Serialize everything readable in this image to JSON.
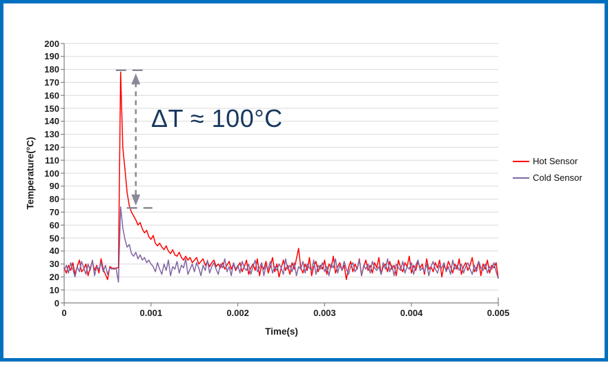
{
  "frame": {
    "border_color": "#0070C0",
    "background": "#FFFFFF"
  },
  "legend": {
    "items": [
      {
        "label": "Hot Sensor",
        "color": "#FF0000"
      },
      {
        "label": "Cold Sensor",
        "color": "#8064A2"
      }
    ]
  },
  "chart_data": {
    "type": "line",
    "title": "",
    "xlabel": "Time(s)",
    "ylabel": "Temperature(°C)",
    "xlim": [
      0,
      0.005
    ],
    "ylim": [
      0,
      200
    ],
    "x_ticks": [
      "0",
      "0.001",
      "0.002",
      "0.003",
      "0.004",
      "0.005"
    ],
    "x_tick_values": [
      0,
      0.001,
      0.002,
      0.003,
      0.004,
      0.005
    ],
    "y_ticks": [
      0,
      10,
      20,
      30,
      40,
      50,
      60,
      70,
      80,
      90,
      100,
      110,
      120,
      130,
      140,
      150,
      160,
      170,
      180,
      190,
      200
    ],
    "grid": "horizontal",
    "gridline_color": "#D9D9D9",
    "axis_color": "#808080",
    "legend_position": "right",
    "x_start": 0,
    "x_step": 2.5e-05,
    "series": [
      {
        "name": "Hot Sensor",
        "color": "#FF0000",
        "values": [
          27,
          23,
          29,
          25,
          31,
          22,
          28,
          33,
          24,
          26,
          30,
          21,
          27,
          32,
          25,
          29,
          23,
          34,
          26,
          22,
          18,
          28,
          27,
          26,
          27,
          27,
          178,
          120,
          103,
          85,
          75,
          70,
          67,
          64,
          60,
          62,
          57,
          54,
          56,
          51,
          49,
          52,
          46,
          44,
          46,
          43,
          41,
          44,
          40,
          38,
          41,
          37,
          36,
          39,
          35,
          33,
          36,
          33,
          35,
          31,
          33,
          35,
          30,
          32,
          34,
          29,
          32,
          28,
          31,
          33,
          28,
          30,
          27,
          31,
          26,
          29,
          32,
          26,
          30,
          25,
          28,
          31,
          24,
          28,
          33,
          22,
          27,
          30,
          25,
          34,
          21,
          29,
          26,
          32,
          23,
          28,
          35,
          24,
          30,
          20,
          27,
          33,
          25,
          29,
          22,
          31,
          26,
          34,
          42,
          27,
          23,
          30,
          25,
          35,
          21,
          28,
          32,
          24,
          29,
          26,
          33,
          22,
          30,
          27,
          36,
          23,
          28,
          31,
          25,
          29,
          18,
          27,
          32,
          24,
          30,
          26,
          34,
          21,
          28,
          33,
          25,
          29,
          23,
          31,
          27,
          35,
          22,
          28,
          30,
          24,
          32,
          26,
          29,
          21,
          33,
          27,
          24,
          31,
          28,
          36,
          23,
          29,
          25,
          32,
          27,
          30,
          22,
          34,
          26,
          28,
          24,
          31,
          27,
          33,
          20,
          29,
          25,
          32,
          28,
          23,
          30,
          26,
          34,
          22,
          28,
          31,
          25,
          29,
          35,
          24,
          27,
          32,
          21,
          30,
          26,
          33,
          23,
          29,
          27,
          31,
          19
        ]
      },
      {
        "name": "Cold Sensor",
        "color": "#8064A2",
        "values": [
          25,
          29,
          23,
          31,
          26,
          20,
          28,
          24,
          32,
          27,
          22,
          30,
          25,
          33,
          21,
          28,
          26,
          31,
          24,
          29,
          22,
          27,
          26,
          27,
          26,
          16,
          74,
          58,
          49,
          43,
          45,
          38,
          36,
          39,
          34,
          37,
          33,
          35,
          31,
          33,
          30,
          28,
          24,
          31,
          26,
          22,
          30,
          25,
          33,
          21,
          28,
          26,
          32,
          23,
          29,
          27,
          34,
          22,
          26,
          30,
          24,
          31,
          27,
          21,
          29,
          25,
          33,
          23,
          28,
          31,
          26,
          22,
          30,
          27,
          34,
          24,
          28,
          21,
          31,
          26,
          29,
          23,
          32,
          27,
          25,
          30,
          22,
          28,
          33,
          24,
          27,
          31,
          21,
          29,
          26,
          32,
          23,
          28,
          25,
          30,
          27,
          22,
          34,
          26,
          29,
          24,
          31,
          21,
          28,
          26,
          32,
          23,
          30,
          27,
          25,
          33,
          22,
          29,
          26,
          31,
          24,
          28,
          21,
          30,
          27,
          34,
          23,
          29,
          25,
          32,
          26,
          22,
          28,
          31,
          24,
          27,
          33,
          21,
          29,
          26,
          30,
          23,
          32,
          27,
          25,
          28,
          22,
          31,
          26,
          34,
          24,
          29,
          21,
          30,
          27,
          25,
          32,
          23,
          28,
          26,
          31,
          22,
          29,
          33,
          25,
          27,
          24,
          30,
          21,
          28,
          32,
          26,
          23,
          29,
          27,
          31,
          24,
          28,
          22,
          33,
          26,
          29,
          25,
          30,
          23,
          28,
          31,
          26,
          22,
          29,
          24,
          32,
          27,
          25,
          30,
          23,
          28,
          26,
          31,
          24,
          19
        ]
      }
    ],
    "annotation": {
      "text": "ΔT ≈ 100°C",
      "color": "#17375E",
      "arrow": {
        "x_time": 0.000825,
        "top_value": 178,
        "bottom_value": 74,
        "color": "#8A8A96"
      }
    }
  }
}
